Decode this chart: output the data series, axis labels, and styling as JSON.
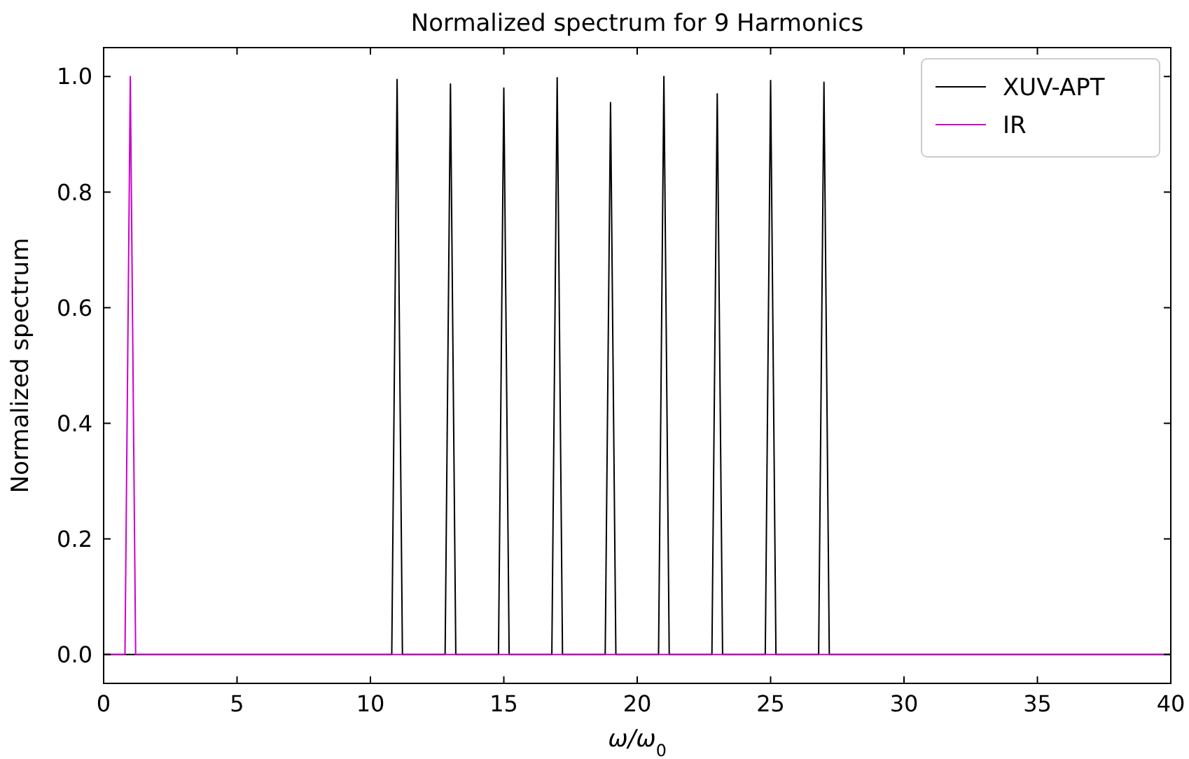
{
  "chart_data": {
    "type": "line",
    "title": "Normalized spectrum for 9 Harmonics",
    "xlabel": "ω/ω$_{0}$",
    "ylabel": "Normalized spectrum",
    "xlim": [
      0,
      40
    ],
    "ylim": [
      -0.05,
      1.05
    ],
    "xticks": [
      0,
      5,
      10,
      15,
      20,
      25,
      30,
      35,
      40
    ],
    "yticks": [
      {
        "value": 0,
        "label": "0.0"
      },
      {
        "value": 0.2,
        "label": "0.2"
      },
      {
        "value": 0.4,
        "label": "0.4"
      },
      {
        "value": 0.6,
        "label": "0.6"
      },
      {
        "value": 0.8,
        "label": "0.8"
      },
      {
        "value": 1,
        "label": "1.0"
      }
    ],
    "grid": false,
    "legend": "top right",
    "marker": "none",
    "line_style": "solid",
    "series": [
      {
        "name": "XUV-APT",
        "color": "#000000",
        "x": [
          0,
          10.8,
          11,
          11.2,
          12.8,
          13,
          13.2,
          14.8,
          15,
          15.2,
          16.8,
          17,
          17.2,
          18.8,
          19,
          19.2,
          20.8,
          21,
          21.2,
          22.8,
          23,
          23.2,
          24.8,
          25,
          25.2,
          26.8,
          27,
          27.2,
          40
        ],
        "values": [
          0,
          0,
          0.995,
          0,
          0,
          0.987,
          0,
          0,
          0.98,
          0,
          0,
          0.998,
          0,
          0,
          0.955,
          0,
          0,
          1.0,
          0,
          0,
          0.97,
          0,
          0,
          0.993,
          0,
          0,
          0.99,
          0,
          0
        ]
      },
      {
        "name": "IR",
        "color": "#cc00cc",
        "x": [
          0,
          0.8,
          1,
          1.2,
          40
        ],
        "values": [
          0,
          0,
          1.0,
          0,
          0
        ]
      }
    ]
  }
}
